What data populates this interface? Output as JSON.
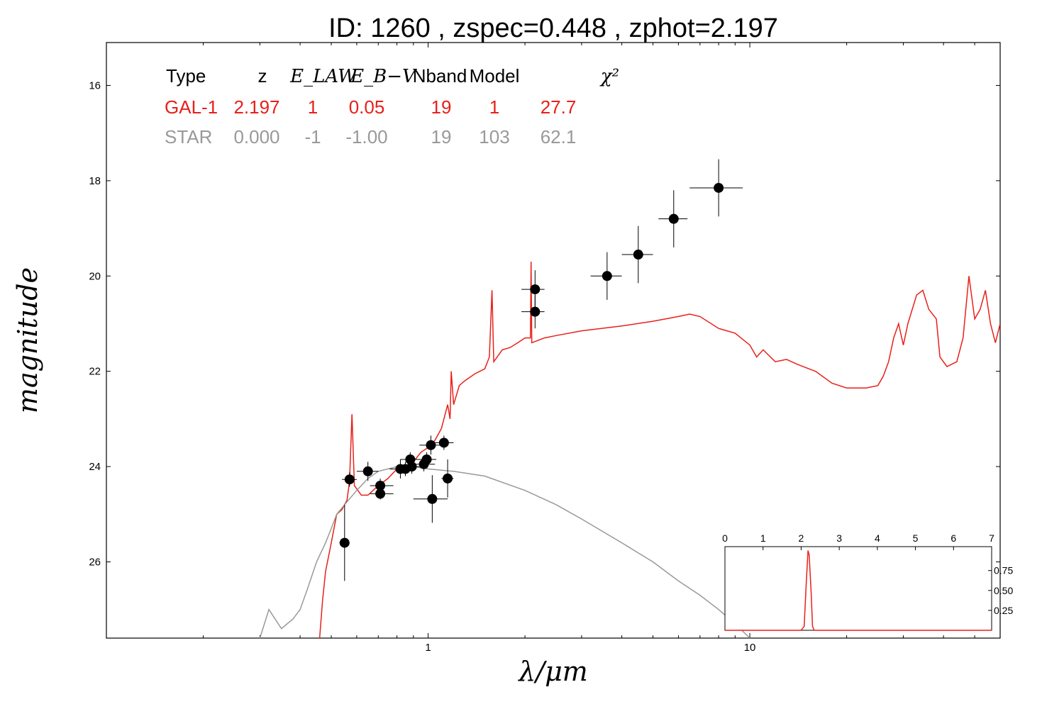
{
  "chart_data": {
    "type": "scatter",
    "title": "ID:  1260  , zspec=0.448 , zphot=2.197",
    "xlabel": "λ/μm",
    "ylabel": "magnitude",
    "x_scale": "log",
    "y_inverted": true,
    "xlim": [
      0.1,
      60
    ],
    "ylim": [
      27.6,
      15.1
    ],
    "x_ticks": [
      1,
      10
    ],
    "x_tick_labels": [
      "1",
      "10"
    ],
    "y_ticks": [
      16,
      18,
      20,
      22,
      24,
      26
    ],
    "y_tick_labels": [
      "16",
      "18",
      "20",
      "22",
      "24",
      "26"
    ],
    "table": {
      "headers": [
        "Type",
        "z",
        "E_LAW",
        "E_B−V",
        "Nband",
        "Model",
        "χ²"
      ],
      "rows": [
        {
          "color": "#e8201a",
          "cells": [
            "GAL-1",
            "2.197",
            "1",
            "0.05",
            "19",
            "1",
            "27.7"
          ]
        },
        {
          "color": "#999999",
          "cells": [
            "STAR",
            "0.000",
            "-1",
            "-1.00",
            "19",
            "103",
            "62.1"
          ]
        }
      ]
    },
    "series": [
      {
        "name": "GAL-1",
        "kind": "line",
        "color": "#e8201a",
        "points": [
          [
            0.46,
            27.6
          ],
          [
            0.47,
            26.8
          ],
          [
            0.48,
            26.2
          ],
          [
            0.5,
            25.6
          ],
          [
            0.52,
            25.0
          ],
          [
            0.54,
            24.9
          ],
          [
            0.56,
            24.7
          ],
          [
            0.57,
            24.3
          ],
          [
            0.58,
            22.9
          ],
          [
            0.59,
            24.4
          ],
          [
            0.62,
            24.6
          ],
          [
            0.65,
            24.6
          ],
          [
            0.7,
            24.4
          ],
          [
            0.75,
            24.25
          ],
          [
            0.8,
            24.05
          ],
          [
            0.85,
            24.0
          ],
          [
            0.9,
            23.9
          ],
          [
            0.95,
            23.7
          ],
          [
            1.0,
            23.6
          ],
          [
            1.05,
            23.45
          ],
          [
            1.1,
            23.2
          ],
          [
            1.15,
            22.7
          ],
          [
            1.17,
            23.0
          ],
          [
            1.18,
            22.0
          ],
          [
            1.2,
            22.7
          ],
          [
            1.25,
            22.3
          ],
          [
            1.3,
            22.2
          ],
          [
            1.4,
            22.05
          ],
          [
            1.5,
            21.95
          ],
          [
            1.55,
            21.7
          ],
          [
            1.58,
            20.3
          ],
          [
            1.6,
            21.8
          ],
          [
            1.7,
            21.55
          ],
          [
            1.8,
            21.5
          ],
          [
            1.9,
            21.4
          ],
          [
            2.0,
            21.3
          ],
          [
            2.08,
            21.3
          ],
          [
            2.09,
            19.7
          ],
          [
            2.1,
            21.4
          ],
          [
            2.3,
            21.3
          ],
          [
            2.5,
            21.25
          ],
          [
            3.0,
            21.15
          ],
          [
            4.0,
            21.05
          ],
          [
            5.0,
            20.95
          ],
          [
            6.0,
            20.85
          ],
          [
            6.5,
            20.8
          ],
          [
            7.0,
            20.85
          ],
          [
            8.0,
            21.1
          ],
          [
            9.0,
            21.2
          ],
          [
            10.0,
            21.45
          ],
          [
            10.5,
            21.7
          ],
          [
            11.0,
            21.55
          ],
          [
            12.0,
            21.8
          ],
          [
            13.0,
            21.75
          ],
          [
            14.0,
            21.85
          ],
          [
            16.0,
            22.0
          ],
          [
            18.0,
            22.25
          ],
          [
            20.0,
            22.35
          ],
          [
            23.0,
            22.35
          ],
          [
            25.0,
            22.3
          ],
          [
            26.0,
            22.1
          ],
          [
            27.0,
            21.8
          ],
          [
            28.0,
            21.3
          ],
          [
            29.0,
            21.0
          ],
          [
            30.0,
            21.45
          ],
          [
            31.0,
            21.0
          ],
          [
            33.0,
            20.4
          ],
          [
            34.5,
            20.3
          ],
          [
            36.0,
            20.7
          ],
          [
            38.0,
            20.9
          ],
          [
            39.0,
            21.7
          ],
          [
            41.0,
            21.9
          ],
          [
            44.0,
            21.8
          ],
          [
            46.0,
            21.3
          ],
          [
            48.0,
            20.0
          ],
          [
            50.0,
            20.9
          ],
          [
            52.0,
            20.7
          ],
          [
            54.0,
            20.3
          ],
          [
            56.0,
            21.0
          ],
          [
            58.0,
            21.4
          ],
          [
            60.0,
            21.0
          ]
        ]
      },
      {
        "name": "STAR",
        "kind": "line",
        "color": "#999999",
        "points": [
          [
            0.3,
            27.6
          ],
          [
            0.32,
            27.0
          ],
          [
            0.35,
            27.4
          ],
          [
            0.38,
            27.2
          ],
          [
            0.4,
            27.0
          ],
          [
            0.42,
            26.6
          ],
          [
            0.45,
            26.0
          ],
          [
            0.48,
            25.6
          ],
          [
            0.5,
            25.3
          ],
          [
            0.52,
            25.0
          ],
          [
            0.55,
            24.8
          ],
          [
            0.6,
            24.5
          ],
          [
            0.65,
            24.25
          ],
          [
            0.7,
            24.1
          ],
          [
            0.75,
            24.05
          ],
          [
            0.8,
            24.0
          ],
          [
            0.9,
            24.0
          ],
          [
            1.0,
            24.05
          ],
          [
            1.2,
            24.1
          ],
          [
            1.5,
            24.2
          ],
          [
            2.0,
            24.5
          ],
          [
            2.5,
            24.8
          ],
          [
            3.0,
            25.1
          ],
          [
            4.0,
            25.6
          ],
          [
            5.0,
            26.0
          ],
          [
            6.0,
            26.4
          ],
          [
            7.0,
            26.7
          ],
          [
            8.0,
            27.0
          ],
          [
            9.0,
            27.3
          ],
          [
            10.0,
            27.6
          ]
        ]
      },
      {
        "name": "Observed photometry",
        "kind": "points",
        "color": "#000000",
        "points": [
          {
            "x": 0.55,
            "y": 25.6,
            "xerr": [
              0.53,
              0.57
            ],
            "yerr": 0.8
          },
          {
            "x": 0.57,
            "y": 24.27,
            "xerr": [
              0.54,
              0.6
            ],
            "yerr": 0.15
          },
          {
            "x": 0.65,
            "y": 24.1,
            "xerr": [
              0.6,
              0.7
            ],
            "yerr": 0.2
          },
          {
            "x": 0.71,
            "y": 24.4,
            "xerr": [
              0.66,
              0.78
            ],
            "yerr": 0.15
          },
          {
            "x": 0.71,
            "y": 24.57,
            "xerr": [
              0.66,
              0.78
            ],
            "yerr": 0.12
          },
          {
            "x": 0.82,
            "y": 24.05,
            "xerr": [
              0.76,
              0.88
            ],
            "yerr": 0.2
          },
          {
            "x": 0.85,
            "y": 24.05,
            "xerr": [
              0.8,
              0.9
            ],
            "yerr": 0.15
          },
          {
            "x": 0.88,
            "y": 23.85,
            "xerr": [
              0.82,
              0.95
            ],
            "yerr": 0.15
          },
          {
            "x": 0.89,
            "y": 24.0,
            "xerr": [
              0.83,
              0.96
            ],
            "yerr": 0.15
          },
          {
            "x": 0.97,
            "y": 23.95,
            "xerr": [
              0.9,
              1.05
            ],
            "yerr": 0.15
          },
          {
            "x": 0.99,
            "y": 23.85,
            "xerr": [
              0.92,
              1.06
            ],
            "yerr": 0.15
          },
          {
            "x": 1.02,
            "y": 23.55,
            "xerr": [
              0.94,
              1.1
            ],
            "yerr": 0.2
          },
          {
            "x": 1.12,
            "y": 23.5,
            "xerr": [
              1.05,
              1.2
            ],
            "yerr": 0.15
          },
          {
            "x": 1.03,
            "y": 24.68,
            "xerr": [
              0.9,
              1.15
            ],
            "yerr": 0.5
          },
          {
            "x": 1.15,
            "y": 24.25,
            "xerr": [
              1.1,
              1.2
            ],
            "yerr": 0.4
          },
          {
            "x": 2.15,
            "y": 20.28,
            "xerr": [
              1.95,
              2.3
            ],
            "yerr": 0.4
          },
          {
            "x": 2.15,
            "y": 20.75,
            "xerr": [
              1.95,
              2.3
            ],
            "yerr": 0.35
          },
          {
            "x": 3.6,
            "y": 20.0,
            "xerr": [
              3.2,
              4.0
            ],
            "yerr": 0.5
          },
          {
            "x": 4.5,
            "y": 19.55,
            "xerr": [
              4.0,
              5.0
            ],
            "yerr": 0.6
          },
          {
            "x": 5.8,
            "y": 18.8,
            "xerr": [
              5.2,
              6.4
            ],
            "yerr": 0.6
          },
          {
            "x": 8.0,
            "y": 18.15,
            "xerr": [
              6.5,
              9.5
            ],
            "yerr": 0.6
          }
        ]
      }
    ],
    "inset": {
      "type": "line",
      "xlim": [
        0,
        7
      ],
      "ylim": [
        0,
        1.05
      ],
      "x_ticks": [
        0,
        1,
        2,
        3,
        4,
        5,
        6,
        7
      ],
      "x_tick_labels": [
        "0",
        "1",
        "2",
        "3",
        "4",
        "5",
        "6",
        "7"
      ],
      "y_ticks": [
        0.25,
        0.5,
        0.75
      ],
      "y_tick_labels": [
        "0.25",
        "0.50",
        "0.75"
      ],
      "color": "#e8201a",
      "points": [
        [
          0,
          0
        ],
        [
          2.0,
          0
        ],
        [
          2.08,
          0.05
        ],
        [
          2.13,
          0.55
        ],
        [
          2.18,
          1.0
        ],
        [
          2.21,
          0.95
        ],
        [
          2.26,
          0.5
        ],
        [
          2.3,
          0.05
        ],
        [
          2.34,
          0
        ],
        [
          7,
          0
        ]
      ]
    }
  }
}
